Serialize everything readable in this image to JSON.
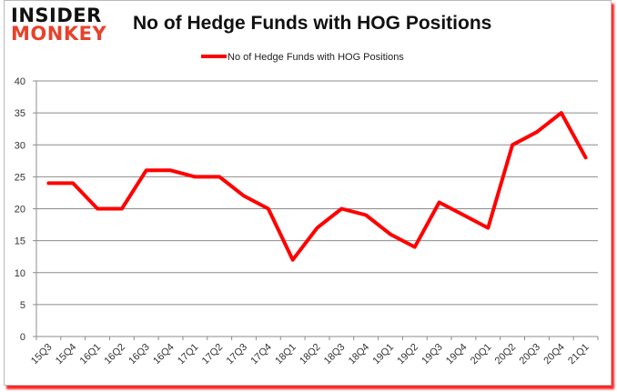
{
  "logo": {
    "line1": "INSIDER",
    "line2": "MONKEY"
  },
  "colors": {
    "series": "#ff0000",
    "grid": "#8c8c8c",
    "shadow": "#ff0000",
    "logo_accent": "#e8412b"
  },
  "chart_data": {
    "type": "line",
    "title": "No of Hedge Funds with HOG Positions",
    "xlabel": "",
    "ylabel": "",
    "ylim": [
      0,
      40
    ],
    "yticks": [
      0,
      5,
      10,
      15,
      20,
      25,
      30,
      35,
      40
    ],
    "grid": true,
    "legend_position": "top",
    "categories": [
      "15Q3",
      "15Q4",
      "16Q1",
      "16Q2",
      "16Q3",
      "16Q4",
      "17Q1",
      "17Q2",
      "17Q3",
      "17Q4",
      "18Q1",
      "18Q2",
      "18Q3",
      "18Q4",
      "19Q1",
      "19Q2",
      "19Q3",
      "19Q4",
      "20Q1",
      "20Q2",
      "20Q3",
      "20Q4",
      "21Q1"
    ],
    "series": [
      {
        "name": "No of Hedge Funds with HOG Positions",
        "values": [
          24,
          24,
          20,
          20,
          26,
          26,
          25,
          25,
          22,
          20,
          12,
          17,
          20,
          19,
          16,
          14,
          21,
          19,
          17,
          30,
          32,
          35,
          28
        ]
      }
    ]
  }
}
